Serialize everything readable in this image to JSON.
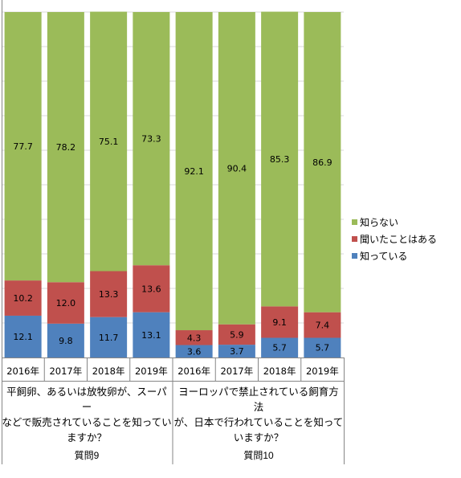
{
  "chart_data": {
    "type": "bar",
    "stacked": true,
    "ylim": [
      0,
      100
    ],
    "grid": true,
    "legend_position": "right",
    "colors": {
      "知っている": "#4f81bd",
      "聞いたことはある": "#c0504d",
      "知らない": "#9bbb59"
    },
    "legend": [
      "知らない",
      "聞いたことはある",
      "知っている"
    ],
    "groups": [
      {
        "label": "質問9",
        "question": "平飼卵、あるいは放牧卵が、スーパーなどで販売されていることを知っていますか？",
        "categories": [
          "2016年",
          "2017年",
          "2018年",
          "2019年"
        ],
        "series": [
          {
            "name": "知っている",
            "values": [
              12.1,
              9.8,
              11.7,
              13.1
            ]
          },
          {
            "name": "聞いたことはある",
            "values": [
              10.2,
              12.0,
              13.3,
              13.6
            ]
          },
          {
            "name": "知らない",
            "values": [
              77.7,
              78.2,
              75.1,
              73.3
            ]
          }
        ]
      },
      {
        "label": "質問10",
        "question": "ヨーロッパで禁止されている飼育方法が、日本で行われていることを知っていますか？",
        "categories": [
          "2016年",
          "2017年",
          "2018年",
          "2019年"
        ],
        "series": [
          {
            "name": "知っている",
            "values": [
              3.6,
              3.7,
              5.7,
              5.7
            ]
          },
          {
            "name": "聞いたことはある",
            "values": [
              4.3,
              5.9,
              9.1,
              7.4
            ]
          },
          {
            "name": "知らない",
            "values": [
              92.1,
              90.4,
              85.3,
              86.9
            ]
          }
        ]
      }
    ]
  },
  "questions": {
    "q9_lines": [
      "平飼卵、あるいは放牧卵が、スーパー",
      "などで販売されていることを知ってい",
      "ますか？"
    ],
    "q10_lines": [
      "ヨーロッパで禁止されている飼育方法",
      "が、日本で行われていることを知って",
      "いますか？"
    ]
  }
}
